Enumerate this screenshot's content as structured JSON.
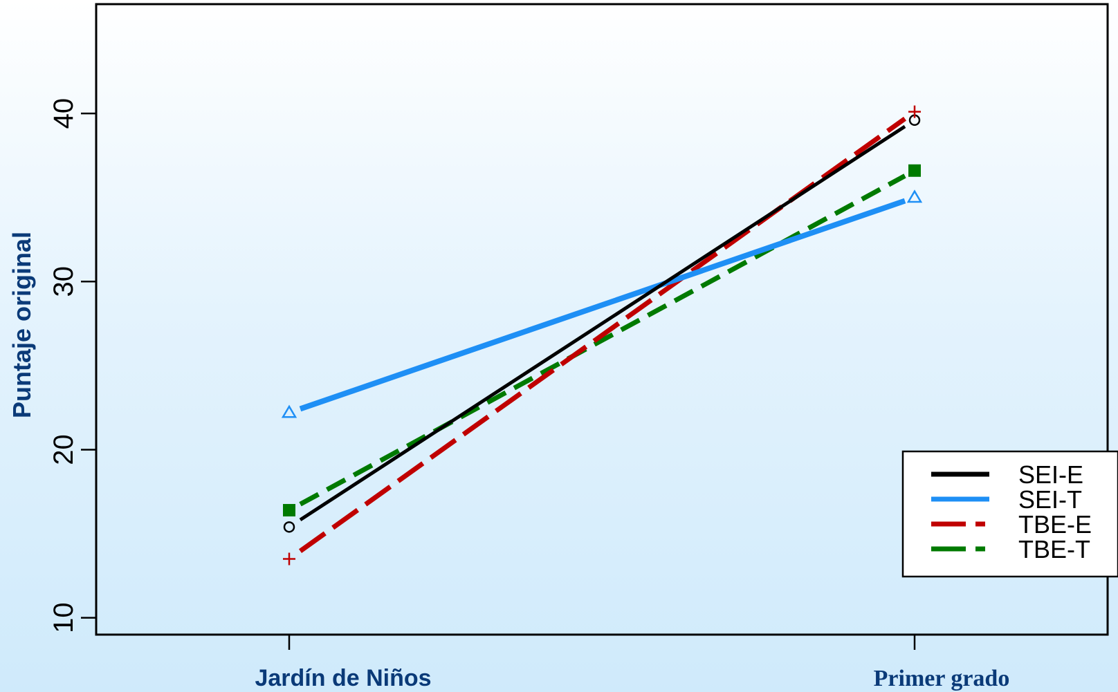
{
  "chart_data": {
    "type": "line",
    "title": "",
    "xlabel": "",
    "ylabel": "Puntaje original",
    "categories": [
      "Jardín de Niños",
      "Primer grado"
    ],
    "ylim": [
      9,
      46.5
    ],
    "yticks": [
      10,
      20,
      30,
      40
    ],
    "grid": false,
    "legend_position": "right",
    "series": [
      {
        "name": "SEI-E",
        "values": [
          15.4,
          39.6
        ],
        "color": "#000000",
        "marker": "circle",
        "dash": "solid"
      },
      {
        "name": "SEI-T",
        "values": [
          22.2,
          35.0
        ],
        "color": "#1e8ff5",
        "marker": "triangle",
        "dash": "solid"
      },
      {
        "name": "TBE-E",
        "values": [
          13.5,
          40.1
        ],
        "color": "#c00000",
        "marker": "plus",
        "dash": "longdash"
      },
      {
        "name": "TBE-T",
        "values": [
          16.4,
          36.6
        ],
        "color": "#007a00",
        "marker": "square",
        "dash": "dash"
      }
    ]
  }
}
